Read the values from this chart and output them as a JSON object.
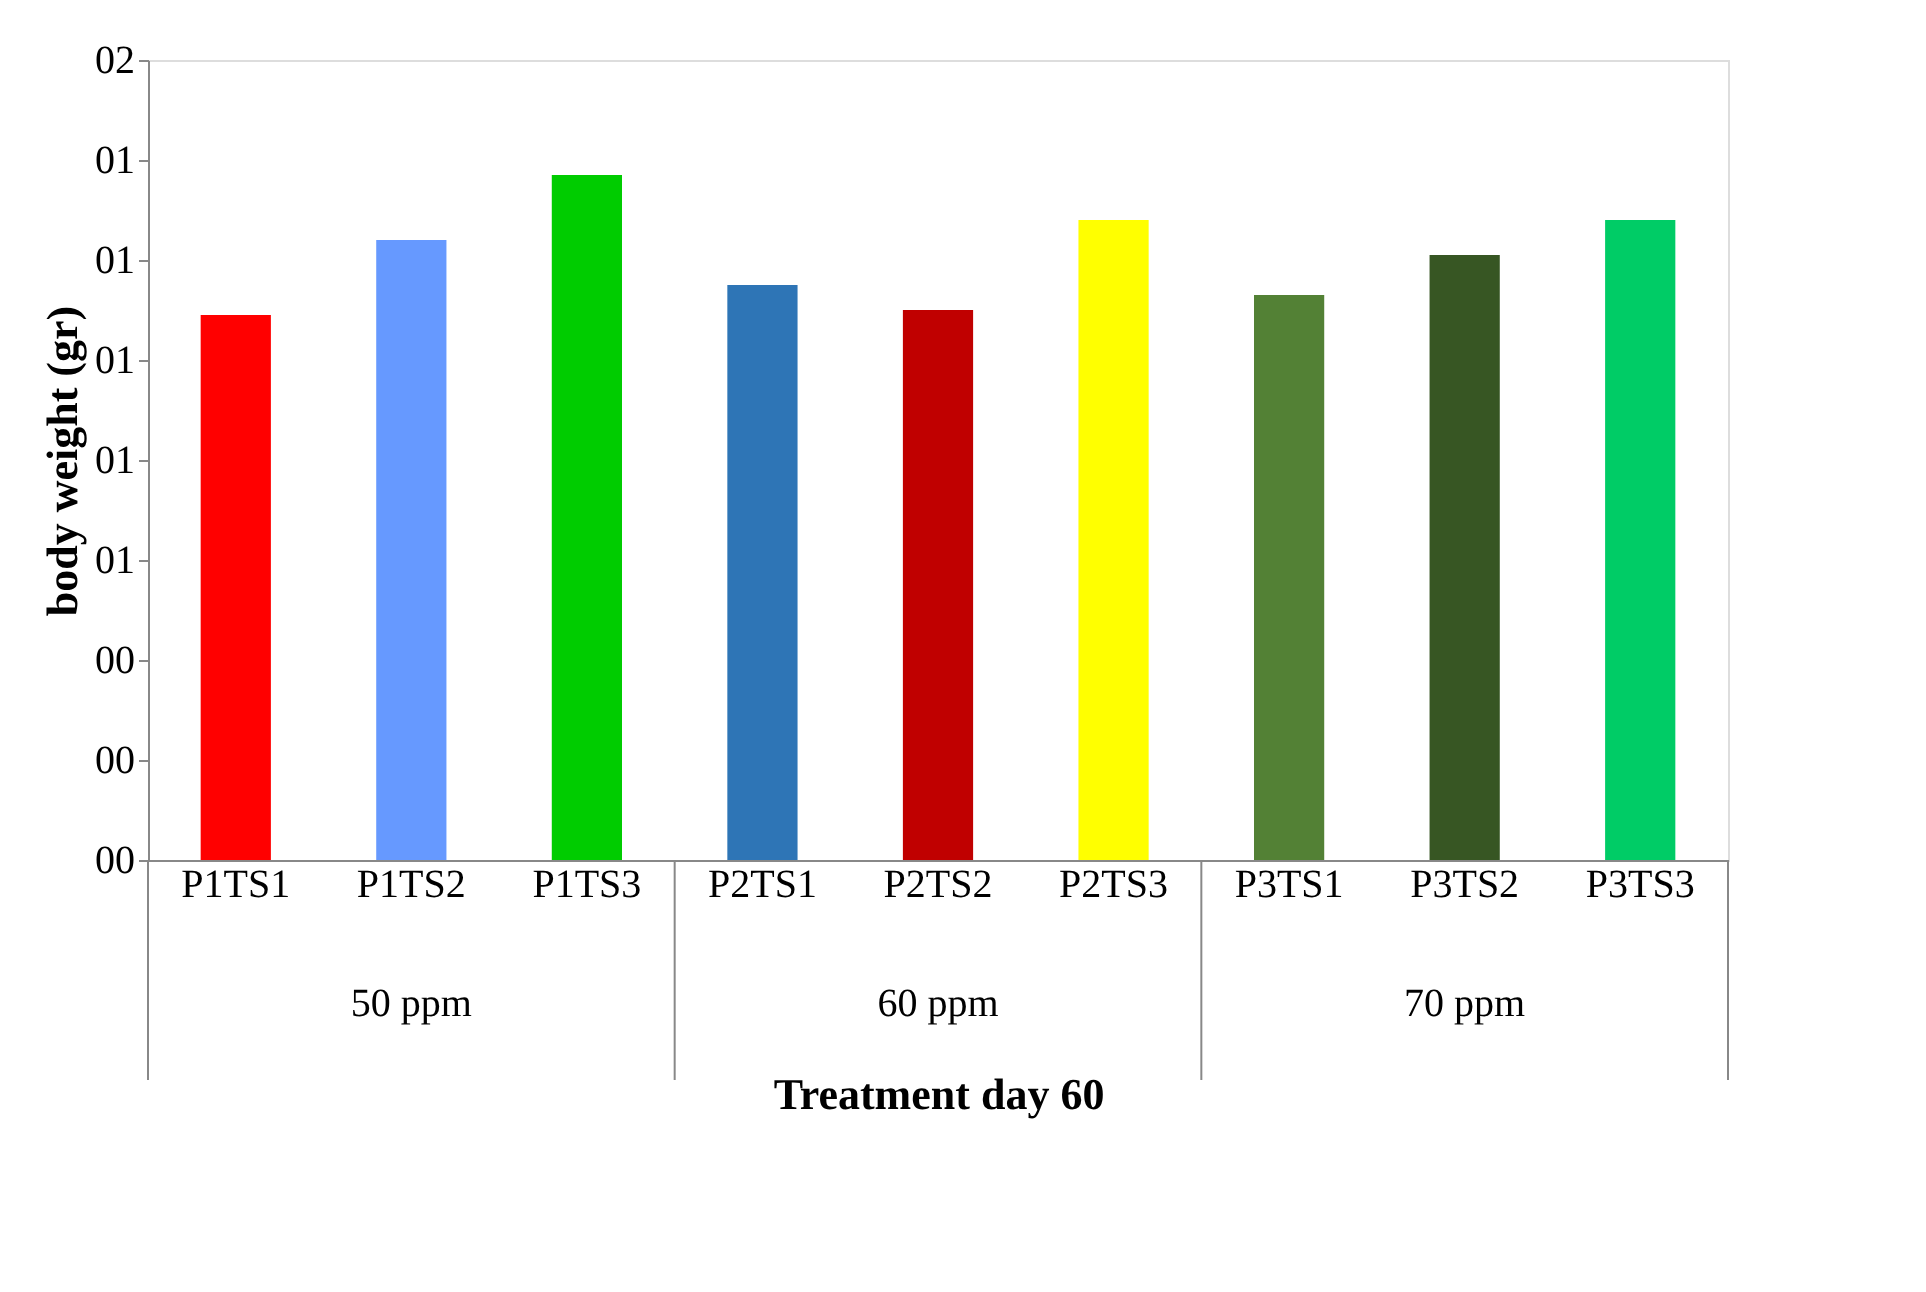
{
  "chart_data": {
    "type": "bar",
    "xlabel": "Treatment day 60",
    "ylabel": "body weight (gr)",
    "categories": [
      "P1TS1",
      "P1TS2",
      "P1TS3",
      "P2TS1",
      "P2TS2",
      "P2TS3",
      "P3TS1",
      "P3TS2",
      "P3TS3"
    ],
    "values": [
      1.09,
      1.24,
      1.37,
      1.15,
      1.1,
      1.28,
      1.13,
      1.21,
      1.28
    ],
    "colors": [
      "#ff0000",
      "#6699ff",
      "#00cc00",
      "#2e75b6",
      "#c00000",
      "#ffff00",
      "#538135",
      "#375623",
      "#00cc66"
    ],
    "ylim": [
      0,
      1.6
    ],
    "yticks": [
      {
        "value": 0,
        "label": "00"
      },
      {
        "value": 0.2,
        "label": "00"
      },
      {
        "value": 0.4,
        "label": "00"
      },
      {
        "value": 0.6,
        "label": "01"
      },
      {
        "value": 0.8,
        "label": "01"
      },
      {
        "value": 1.0,
        "label": "01"
      },
      {
        "value": 1.2,
        "label": "01"
      },
      {
        "value": 1.4,
        "label": "01"
      },
      {
        "value": 1.6,
        "label": "02"
      }
    ],
    "annotations": [
      "50 ppm",
      "60 ppm",
      "70 ppm"
    ],
    "grid": false,
    "legend": false
  }
}
